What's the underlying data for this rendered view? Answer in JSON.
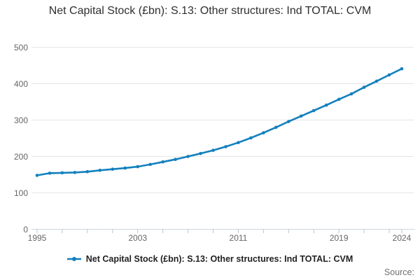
{
  "title": "Net Capital Stock (£bn): S.13: Other structures: Ind TOTAL: CVM",
  "legend": {
    "label": "Net Capital Stock (£bn): S.13: Other structures: Ind TOTAL: CVM"
  },
  "source_label": "Source:",
  "colors": {
    "line": "#1380BE",
    "marker": "#1380BE",
    "grid": "#e6e6e6",
    "axis_line": "#ccd6dd",
    "tick_mark": "#b5c4d2",
    "axis_text": "#666666",
    "title_text": "#2f2f2f",
    "legend_text": "#222222",
    "source_text": "#707070"
  },
  "chart_data": {
    "type": "line",
    "title": "Net Capital Stock (£bn): S.13: Other structures: Ind TOTAL: CVM",
    "xlabel": "",
    "ylabel": "",
    "xlim": [
      1995,
      2024
    ],
    "ylim": [
      0,
      500
    ],
    "yticks": [
      0,
      100,
      200,
      300,
      400,
      500
    ],
    "xticks_labeled": [
      1995,
      2003,
      2011,
      2019,
      2024
    ],
    "xtick_minor_step": 2,
    "grid": "horizontal",
    "markers": true,
    "legend_position": "bottom",
    "series": [
      {
        "name": "Net Capital Stock (£bn): S.13: Other structures: Ind TOTAL: CVM",
        "x": [
          1995,
          1996,
          1997,
          1998,
          1999,
          2000,
          2001,
          2002,
          2003,
          2004,
          2005,
          2006,
          2007,
          2008,
          2009,
          2010,
          2011,
          2012,
          2013,
          2014,
          2015,
          2016,
          2017,
          2018,
          2019,
          2020,
          2021,
          2022,
          2023,
          2024
        ],
        "values": [
          148,
          154,
          155,
          156,
          158,
          162,
          165,
          168,
          172,
          178,
          185,
          192,
          200,
          208,
          217,
          227,
          238,
          251,
          265,
          280,
          296,
          311,
          326,
          341,
          357,
          372,
          390,
          407,
          424,
          441
        ]
      }
    ]
  }
}
